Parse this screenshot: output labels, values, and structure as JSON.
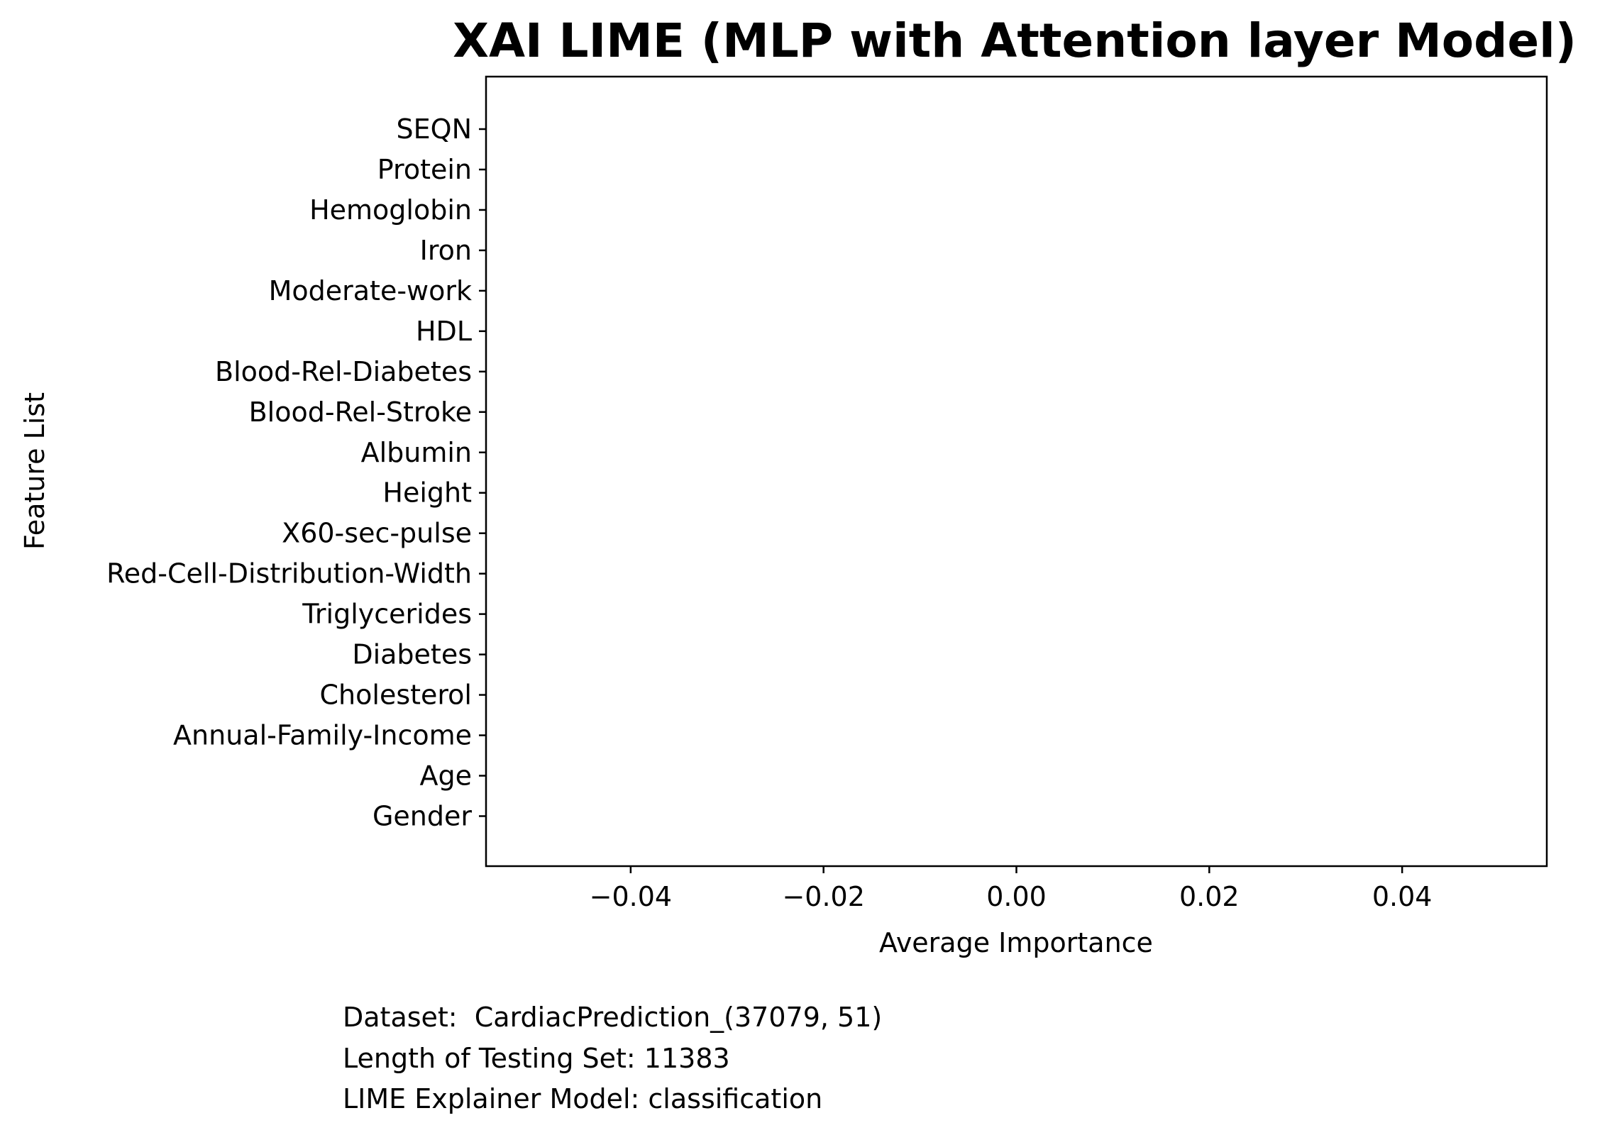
{
  "chart_data": {
    "type": "bar",
    "orientation": "horizontal",
    "title": "XAI LIME (MLP with Attention layer Model)",
    "xlabel": "Average Importance",
    "ylabel": "Feature List",
    "categories": [
      "SEQN",
      "Protein",
      "Hemoglobin",
      "Iron",
      "Moderate-work",
      "HDL",
      "Blood-Rel-Diabetes",
      "Blood-Rel-Stroke",
      "Albumin",
      "Height",
      "X60-sec-pulse",
      "Red-Cell-Distribution-Width",
      "Triglycerides",
      "Diabetes",
      "Cholesterol",
      "Annual-Family-Income",
      "Age",
      "Gender"
    ],
    "values": [
      0,
      0,
      0,
      0,
      0,
      0,
      0,
      0,
      0,
      0,
      0,
      0,
      0,
      0,
      0,
      0,
      0,
      0
    ],
    "xticks": [
      "−0.04",
      "−0.02",
      "0.00",
      "0.02",
      "0.04"
    ],
    "xtick_values": [
      -0.04,
      -0.02,
      0.0,
      0.02,
      0.04
    ],
    "xlim": [
      -0.055,
      0.055
    ],
    "grid": false
  },
  "footnotes": {
    "dataset": "Dataset:  CardiacPrediction_(37079, 51)",
    "testing_length": "Length of Testing Set: 11383",
    "explainer": "LIME Explainer Model: classification"
  }
}
